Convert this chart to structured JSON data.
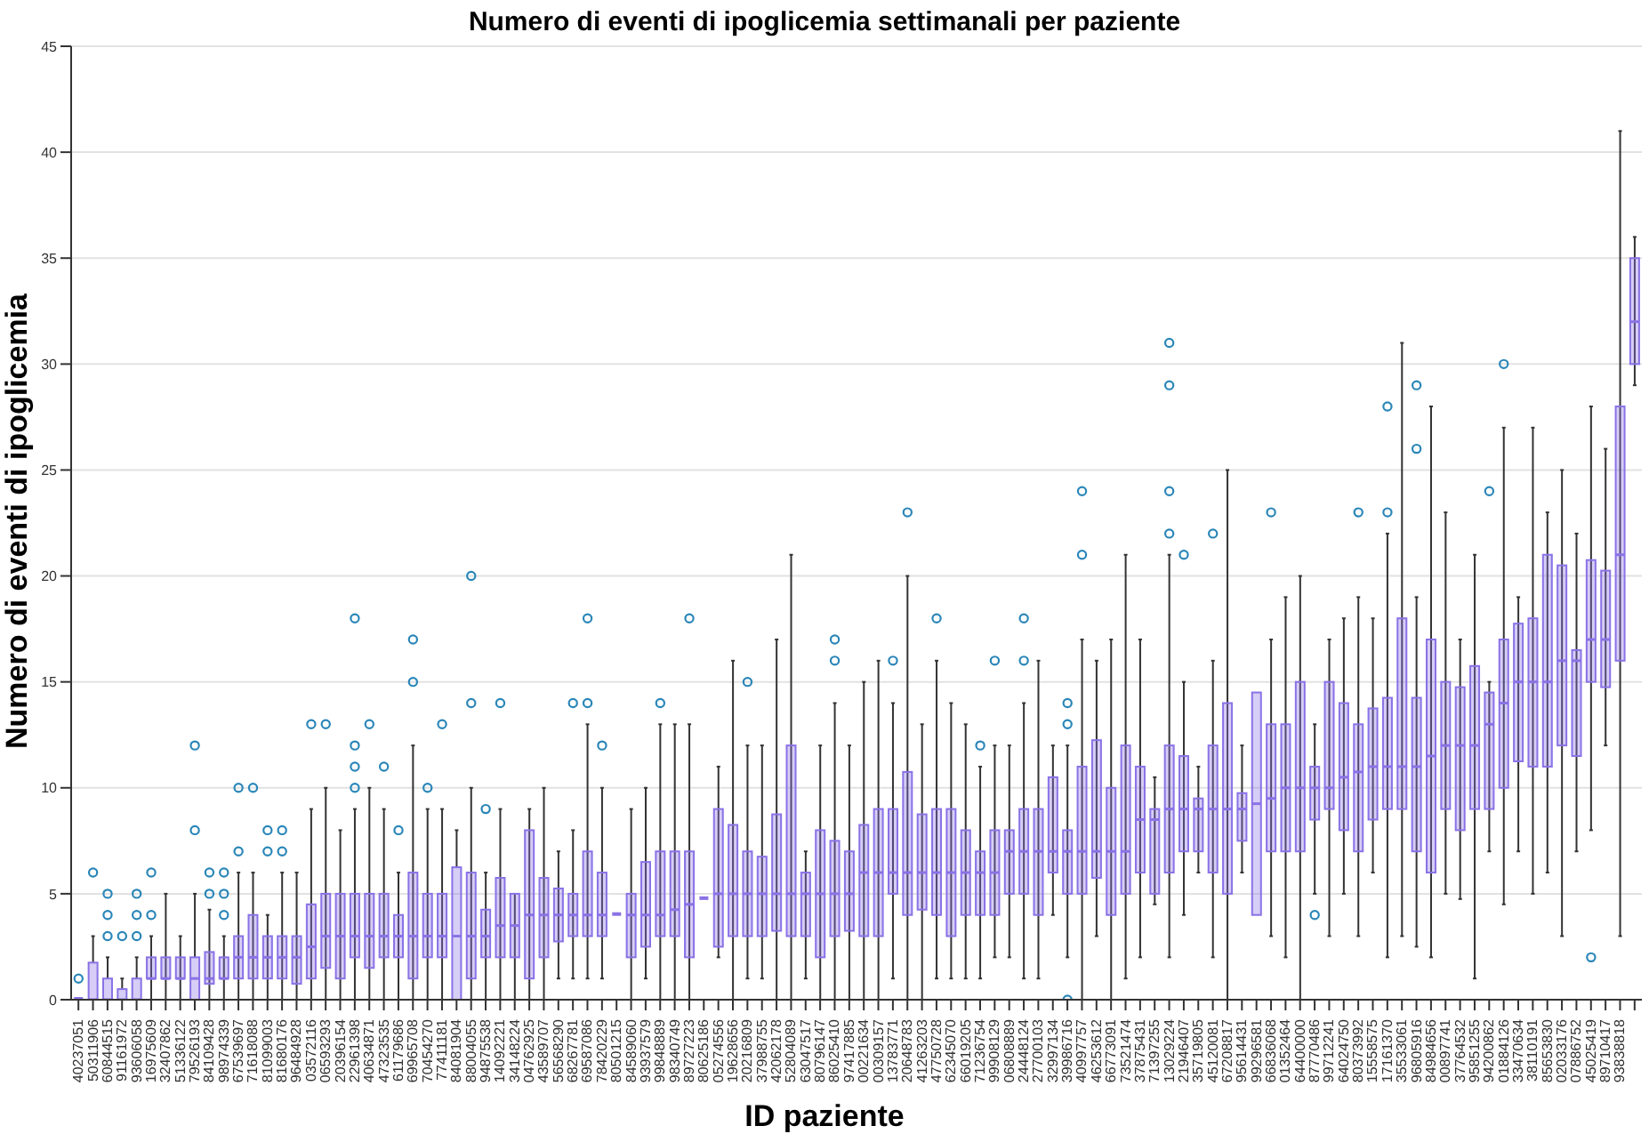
{
  "chart_data": {
    "type": "box",
    "title": "Numero di eventi di ipoglicemia settimanali per paziente",
    "xlabel": "ID paziente",
    "ylabel": "Numero di eventi di ipoglicemia",
    "color": "#8a72e6",
    "ylim": [
      0,
      45
    ],
    "yticks": [
      0,
      5,
      10,
      15,
      20,
      25,
      30,
      35,
      40,
      45
    ],
    "grid": "y",
    "categories": [
      "40237051",
      "50311906",
      "60844515",
      "91161972",
      "93606058",
      "16975609",
      "32407862",
      "51336122",
      "79526193",
      "84109428",
      "98974339",
      "67539697",
      "71618088",
      "81099003",
      "81680176",
      "96484928",
      "03572116",
      "06593293",
      "20396154",
      "22961398",
      "40634871",
      "47323535",
      "61179686",
      "69965708",
      "70454270",
      "77411181",
      "84081904",
      "88004055",
      "94875538",
      "14092221",
      "34148224",
      "04762925",
      "43589707",
      "56568290",
      "68267781",
      "69587086",
      "78420229",
      "80501215",
      "84589060",
      "93937579",
      "99848889",
      "98340749",
      "89727223",
      "80625186",
      "05274556",
      "19628656",
      "20216809",
      "37988755",
      "42062178",
      "52804089",
      "63047517",
      "80796147",
      "86025410",
      "97417885",
      "00221634",
      "00309157",
      "13783771",
      "20648783",
      "41263203",
      "47750728",
      "62345070",
      "66019205",
      "71236754",
      "99908129",
      "06808889",
      "24448124",
      "27700103",
      "32997134",
      "39986716",
      "40997757",
      "46253612",
      "66773091",
      "73521474",
      "37875431",
      "71397255",
      "13029224",
      "21946407",
      "35719805",
      "45120081",
      "67208817",
      "95614431",
      "99296581",
      "66836068",
      "01352464",
      "64400000",
      "87770486",
      "99712241",
      "64024750",
      "80373992",
      "15558575",
      "17161370",
      "35533061",
      "96805916",
      "84984656",
      "00897741",
      "37764532",
      "95851255",
      "94200862",
      "01884126",
      "33470634",
      "38110191",
      "85653830",
      "02033176",
      "07886752",
      "45025419",
      "89710417",
      "93838818",
      null
    ],
    "boxes": [
      {
        "low": 0,
        "q1": 0,
        "median": 0,
        "q3": 0,
        "high": 0,
        "outliers": [
          1
        ]
      },
      {
        "low": 0,
        "q1": 0,
        "median": 0,
        "q3": 1.75,
        "high": 3,
        "outliers": [
          6
        ]
      },
      {
        "low": 0,
        "q1": 0,
        "median": 0,
        "q3": 1,
        "high": 2,
        "outliers": [
          3,
          4,
          5
        ]
      },
      {
        "low": 0,
        "q1": 0,
        "median": 0,
        "q3": 0.5,
        "high": 1,
        "outliers": [
          3
        ]
      },
      {
        "low": 0,
        "q1": 0,
        "median": 0,
        "q3": 1,
        "high": 2,
        "outliers": [
          3,
          4,
          5
        ]
      },
      {
        "low": 0,
        "q1": 1,
        "median": 1,
        "q3": 2,
        "high": 3,
        "outliers": [
          4,
          6
        ]
      },
      {
        "low": 0,
        "q1": 1,
        "median": 1,
        "q3": 2,
        "high": 5
      },
      {
        "low": 0,
        "q1": 1,
        "median": 1,
        "q3": 2,
        "high": 3
      },
      {
        "low": 0,
        "q1": 0,
        "median": 1,
        "q3": 2,
        "high": 5,
        "outliers": [
          8,
          12
        ]
      },
      {
        "low": 0,
        "q1": 0.75,
        "median": 1,
        "q3": 2.25,
        "high": 4.25,
        "outliers": [
          5,
          6
        ]
      },
      {
        "low": 0,
        "q1": 1,
        "median": 1,
        "q3": 2,
        "high": 3,
        "outliers": [
          4,
          5,
          6
        ]
      },
      {
        "low": 0,
        "q1": 1,
        "median": 2,
        "q3": 3,
        "high": 6,
        "outliers": [
          7,
          10
        ]
      },
      {
        "low": 0,
        "q1": 1,
        "median": 2,
        "q3": 4,
        "high": 6,
        "outliers": [
          10
        ]
      },
      {
        "low": 0,
        "q1": 1,
        "median": 2,
        "q3": 3,
        "high": 4,
        "outliers": [
          7,
          8
        ]
      },
      {
        "low": 0,
        "q1": 1,
        "median": 2,
        "q3": 3,
        "high": 6,
        "outliers": [
          7,
          8
        ]
      },
      {
        "low": 0,
        "q1": 0.75,
        "median": 2,
        "q3": 3,
        "high": 6
      },
      {
        "low": 0,
        "q1": 1,
        "median": 2.5,
        "q3": 4.5,
        "high": 9,
        "outliers": [
          13
        ]
      },
      {
        "low": 0,
        "q1": 1.5,
        "median": 3,
        "q3": 5,
        "high": 10,
        "outliers": [
          13
        ]
      },
      {
        "low": 0,
        "q1": 1,
        "median": 3,
        "q3": 5,
        "high": 8
      },
      {
        "low": 0,
        "q1": 2,
        "median": 3,
        "q3": 5,
        "high": 9,
        "outliers": [
          10,
          11,
          12,
          18
        ]
      },
      {
        "low": 0,
        "q1": 1.5,
        "median": 3,
        "q3": 5,
        "high": 10,
        "outliers": [
          13
        ]
      },
      {
        "low": 0,
        "q1": 2,
        "median": 3,
        "q3": 5,
        "high": 9,
        "outliers": [
          11
        ]
      },
      {
        "low": 0,
        "q1": 2,
        "median": 3,
        "q3": 4,
        "high": 6,
        "outliers": [
          8
        ]
      },
      {
        "low": 0,
        "q1": 1,
        "median": 3,
        "q3": 6,
        "high": 12,
        "outliers": [
          15,
          17
        ]
      },
      {
        "low": 0,
        "q1": 2,
        "median": 3,
        "q3": 5,
        "high": 9,
        "outliers": [
          10
        ]
      },
      {
        "low": 0,
        "q1": 2,
        "median": 3,
        "q3": 5,
        "high": 9,
        "outliers": [
          13
        ]
      },
      {
        "low": 0,
        "q1": 0,
        "median": 3,
        "q3": 6.25,
        "high": 8
      },
      {
        "low": 0,
        "q1": 1,
        "median": 3,
        "q3": 6,
        "high": 10,
        "outliers": [
          14,
          20
        ]
      },
      {
        "low": 0,
        "q1": 2,
        "median": 3,
        "q3": 4.25,
        "high": 6,
        "outliers": [
          9
        ]
      },
      {
        "low": 0,
        "q1": 2,
        "median": 3.5,
        "q3": 5.75,
        "high": 9,
        "outliers": [
          14
        ]
      },
      {
        "low": 0,
        "q1": 2,
        "median": 3.5,
        "q3": 5,
        "high": 5
      },
      {
        "low": 0,
        "q1": 1,
        "median": 4,
        "q3": 8,
        "high": 9
      },
      {
        "low": 0,
        "q1": 2,
        "median": 4,
        "q3": 5.75,
        "high": 10
      },
      {
        "low": 1,
        "q1": 2.75,
        "median": 4,
        "q3": 5.25,
        "high": 7
      },
      {
        "low": 1,
        "q1": 3,
        "median": 4,
        "q3": 5,
        "high": 8,
        "outliers": [
          14
        ]
      },
      {
        "low": 1,
        "q1": 3,
        "median": 4,
        "q3": 7,
        "high": 13,
        "outliers": [
          14,
          18
        ]
      },
      {
        "low": 1,
        "q1": 3,
        "median": 4,
        "q3": 6,
        "high": 10,
        "outliers": [
          12
        ]
      },
      {
        "low": 4,
        "q1": 4,
        "median": 4,
        "q3": 4,
        "high": 4
      },
      {
        "low": 0,
        "q1": 2,
        "median": 4,
        "q3": 5,
        "high": 9
      },
      {
        "low": 1,
        "q1": 2.5,
        "median": 4,
        "q3": 6.5,
        "high": 10
      },
      {
        "low": 0,
        "q1": 3,
        "median": 4,
        "q3": 7,
        "high": 13,
        "outliers": [
          14
        ]
      },
      {
        "low": 0,
        "q1": 3,
        "median": 4.25,
        "q3": 7,
        "high": 13
      },
      {
        "low": 0,
        "q1": 2,
        "median": 4.5,
        "q3": 7,
        "high": 13,
        "outliers": [
          18
        ]
      },
      {
        "low": 4.75,
        "q1": 4.75,
        "median": 4.75,
        "q3": 4.75,
        "high": 4.75
      },
      {
        "low": 2,
        "q1": 2.5,
        "median": 5,
        "q3": 9,
        "high": 11
      },
      {
        "low": 0,
        "q1": 3,
        "median": 5,
        "q3": 8.25,
        "high": 16
      },
      {
        "low": 1,
        "q1": 3,
        "median": 5,
        "q3": 7,
        "high": 12,
        "outliers": [
          15
        ]
      },
      {
        "low": 1,
        "q1": 3,
        "median": 5,
        "q3": 6.75,
        "high": 12
      },
      {
        "low": 0,
        "q1": 3.25,
        "median": 5,
        "q3": 8.75,
        "high": 17
      },
      {
        "low": 0,
        "q1": 3,
        "median": 5,
        "q3": 12,
        "high": 21
      },
      {
        "low": 1,
        "q1": 3,
        "median": 5,
        "q3": 6,
        "high": 7
      },
      {
        "low": 0,
        "q1": 2,
        "median": 5,
        "q3": 8,
        "high": 12
      },
      {
        "low": 0,
        "q1": 3,
        "median": 5,
        "q3": 7.5,
        "high": 14,
        "outliers": [
          16,
          17
        ]
      },
      {
        "low": 0,
        "q1": 3.25,
        "median": 5,
        "q3": 7,
        "high": 12
      },
      {
        "low": 0,
        "q1": 3,
        "median": 6,
        "q3": 8.25,
        "high": 15
      },
      {
        "low": 0,
        "q1": 3,
        "median": 6,
        "q3": 9,
        "high": 16
      },
      {
        "low": 1,
        "q1": 5,
        "median": 6,
        "q3": 9,
        "high": 14,
        "outliers": [
          16
        ]
      },
      {
        "low": 0,
        "q1": 4,
        "median": 6,
        "q3": 10.75,
        "high": 20,
        "outliers": [
          23
        ]
      },
      {
        "low": 0,
        "q1": 4.25,
        "median": 6,
        "q3": 8.75,
        "high": 13
      },
      {
        "low": 1,
        "q1": 4,
        "median": 6,
        "q3": 9,
        "high": 16,
        "outliers": [
          18
        ]
      },
      {
        "low": 1,
        "q1": 3,
        "median": 6,
        "q3": 9,
        "high": 14
      },
      {
        "low": 1,
        "q1": 4,
        "median": 6,
        "q3": 8,
        "high": 13
      },
      {
        "low": 1,
        "q1": 4,
        "median": 6,
        "q3": 7,
        "high": 11,
        "outliers": [
          12
        ]
      },
      {
        "low": 2,
        "q1": 4,
        "median": 6,
        "q3": 8,
        "high": 12,
        "outliers": [
          16
        ]
      },
      {
        "low": 2,
        "q1": 5,
        "median": 7,
        "q3": 8,
        "high": 12
      },
      {
        "low": 1,
        "q1": 5,
        "median": 7,
        "q3": 9,
        "high": 14,
        "outliers": [
          16,
          18
        ]
      },
      {
        "low": 1,
        "q1": 4,
        "median": 7,
        "q3": 9,
        "high": 16
      },
      {
        "low": 4,
        "q1": 6,
        "median": 7,
        "q3": 10.5,
        "high": 12
      },
      {
        "low": 2,
        "q1": 5,
        "median": 7,
        "q3": 8,
        "high": 12,
        "outliers": [
          0,
          13,
          14
        ]
      },
      {
        "low": 0,
        "q1": 5,
        "median": 7,
        "q3": 11,
        "high": 17,
        "outliers": [
          21,
          24
        ]
      },
      {
        "low": 3,
        "q1": 5.75,
        "median": 7,
        "q3": 12.25,
        "high": 16
      },
      {
        "low": 0,
        "q1": 4,
        "median": 7,
        "q3": 10,
        "high": 17
      },
      {
        "low": 1,
        "q1": 5,
        "median": 7,
        "q3": 12,
        "high": 21
      },
      {
        "low": 2,
        "q1": 6,
        "median": 8.5,
        "q3": 11,
        "high": 17
      },
      {
        "low": 4.5,
        "q1": 5,
        "median": 8.5,
        "q3": 9,
        "high": 10.5
      },
      {
        "low": 2,
        "q1": 6,
        "median": 9,
        "q3": 12,
        "high": 21,
        "outliers": [
          22,
          24,
          29,
          31
        ]
      },
      {
        "low": 4,
        "q1": 7,
        "median": 9,
        "q3": 11.5,
        "high": 15,
        "outliers": [
          21
        ]
      },
      {
        "low": 6,
        "q1": 7,
        "median": 9,
        "q3": 9.5,
        "high": 11
      },
      {
        "low": 2,
        "q1": 6,
        "median": 9,
        "q3": 12,
        "high": 16,
        "outliers": [
          22
        ]
      },
      {
        "low": 0,
        "q1": 5,
        "median": 9,
        "q3": 14,
        "high": 25
      },
      {
        "low": 6,
        "q1": 7.5,
        "median": 9,
        "q3": 9.75,
        "high": 12
      },
      {
        "low": 4,
        "q1": 4,
        "median": 9.25,
        "q3": 14.5,
        "high": 14.5
      },
      {
        "low": 3,
        "q1": 7,
        "median": 9.5,
        "q3": 13,
        "high": 17,
        "outliers": [
          23
        ]
      },
      {
        "low": 2,
        "q1": 7,
        "median": 10,
        "q3": 13,
        "high": 19
      },
      {
        "low": 0,
        "q1": 7,
        "median": 10,
        "q3": 15,
        "high": 20
      },
      {
        "low": 5,
        "q1": 8.5,
        "median": 10,
        "q3": 11,
        "high": 13,
        "outliers": [
          4
        ]
      },
      {
        "low": 3,
        "q1": 9,
        "median": 10,
        "q3": 15,
        "high": 17
      },
      {
        "low": 5,
        "q1": 8,
        "median": 10.5,
        "q3": 14,
        "high": 18
      },
      {
        "low": 3,
        "q1": 7,
        "median": 10.75,
        "q3": 13,
        "high": 19,
        "outliers": [
          23
        ]
      },
      {
        "low": 6,
        "q1": 8.5,
        "median": 11,
        "q3": 13.75,
        "high": 18
      },
      {
        "low": 2,
        "q1": 9,
        "median": 11,
        "q3": 14.25,
        "high": 22,
        "outliers": [
          23,
          28
        ]
      },
      {
        "low": 3,
        "q1": 9,
        "median": 11,
        "q3": 18,
        "high": 31
      },
      {
        "low": 2.5,
        "q1": 7,
        "median": 11,
        "q3": 14.25,
        "high": 19,
        "outliers": [
          26,
          29
        ]
      },
      {
        "low": 2,
        "q1": 6,
        "median": 11.5,
        "q3": 17,
        "high": 28
      },
      {
        "low": 5,
        "q1": 9,
        "median": 12,
        "q3": 15,
        "high": 23
      },
      {
        "low": 4.75,
        "q1": 8,
        "median": 12,
        "q3": 14.75,
        "high": 17
      },
      {
        "low": 1,
        "q1": 9,
        "median": 12,
        "q3": 15.75,
        "high": 21
      },
      {
        "low": 7,
        "q1": 9,
        "median": 13,
        "q3": 14.5,
        "high": 15,
        "outliers": [
          24
        ]
      },
      {
        "low": 4.5,
        "q1": 10,
        "median": 14,
        "q3": 17,
        "high": 27,
        "outliers": [
          30
        ]
      },
      {
        "low": 7,
        "q1": 11.25,
        "median": 15,
        "q3": 17.75,
        "high": 19
      },
      {
        "low": 5,
        "q1": 11,
        "median": 15,
        "q3": 18,
        "high": 27
      },
      {
        "low": 6,
        "q1": 11,
        "median": 15,
        "q3": 21,
        "high": 23
      },
      {
        "low": 3,
        "q1": 12,
        "median": 16,
        "q3": 20.5,
        "high": 25
      },
      {
        "low": 7,
        "q1": 11.5,
        "median": 16,
        "q3": 16.5,
        "high": 22
      },
      {
        "low": 8,
        "q1": 15,
        "median": 17,
        "q3": 20.75,
        "high": 28,
        "outliers": [
          2
        ]
      },
      {
        "low": 12,
        "q1": 14.75,
        "median": 17,
        "q3": 20.25,
        "high": 26
      },
      {
        "low": 3,
        "q1": 16,
        "median": 21,
        "q3": 28,
        "high": 41
      },
      {
        "low": 29,
        "q1": 30,
        "median": 32,
        "q3": 35,
        "high": 36
      }
    ]
  }
}
